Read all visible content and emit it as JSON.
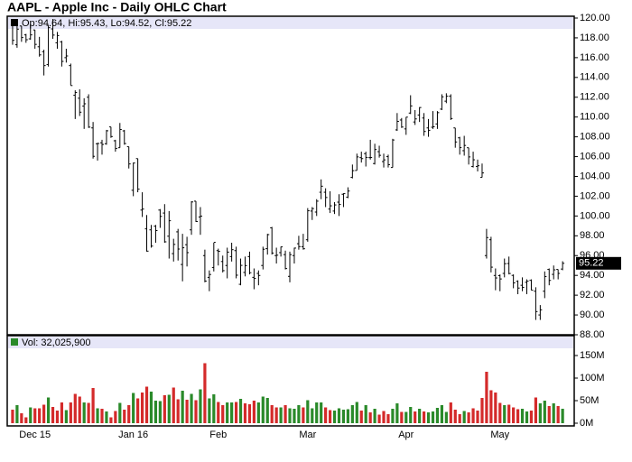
{
  "chart_data": [
    {
      "type": "ohlc",
      "title": "AAPL - Apple Inc - Daily OHLC Chart",
      "legend": "Op:94.64, Hi:95.43, Lo:94.52, Cl:95.22",
      "color": "#000000",
      "open": [
        119.3,
        117.3,
        119.2,
        118.3,
        117.9,
        118.8,
        117.1,
        116.6,
        115.3,
        118.9,
        117.5,
        117.6,
        116.0,
        115.2,
        112.2,
        111.9,
        111.1,
        112.0,
        108.9,
        107.3,
        107.4,
        107.3,
        109.0,
        107.6,
        106.9,
        108.6,
        107.0,
        102.6,
        105.8,
        100.6,
        98.7,
        98.6,
        98.97,
        100.6,
        100.3,
        97.96,
        96.2,
        98.4,
        95.1,
        97.1,
        98.6,
        101.5,
        99.9,
        96.0,
        93.8,
        94.8,
        96.5,
        95.4,
        95.0,
        95.9,
        96.5,
        93.1,
        94.3,
        95.9,
        93.8,
        94.2,
        95.0,
        96.7,
        98.8,
        96.0,
        96.3,
        96.1,
        93.9,
        96.0,
        97.2,
        96.9,
        97.6,
        100.5,
        100.4,
        102.4,
        102.4,
        100.7,
        100.5,
        101.4,
        102.2,
        101.9,
        103.9,
        104.6,
        105.9,
        106.3,
        105.9,
        105.3,
        106.5,
        105.5,
        106.0,
        104.9,
        108.7,
        109.7,
        108.8,
        110.4,
        109.5,
        110.2,
        109.9,
        108.9,
        108.97,
        109.3,
        110.8,
        111.6,
        112.1,
        108.9,
        107.9,
        106.6,
        106.9,
        105.0,
        105.0,
        103.9,
        96.0,
        97.6,
        93.99,
        93.97,
        94.2,
        95.2,
        94.0,
        93.4,
        93.0,
        93.3,
        93.5,
        92.4,
        90.0,
        92.4,
        94.6,
        94.1,
        94.6,
        94.64
      ],
      "high": [
        119.7,
        119.9,
        119.2,
        118.4,
        119.4,
        118.8,
        118.1,
        116.8,
        119.3,
        119.9,
        118.6,
        117.7,
        116.9,
        115.4,
        112.7,
        112.8,
        111.9,
        112.3,
        109.5,
        107.4,
        107.7,
        108.7,
        109.0,
        107.7,
        109.4,
        108.7,
        107.0,
        105.4,
        105.8,
        102.4,
        100.1,
        99.1,
        99.1,
        100.7,
        101.2,
        100.5,
        97.7,
        98.7,
        98.2,
        97.9,
        101.5,
        101.5,
        100.9,
        96.6,
        94.5,
        97.3,
        96.7,
        96.0,
        96.8,
        97.3,
        96.9,
        95.7,
        95.9,
        96.4,
        94.7,
        94.5,
        96.9,
        98.2,
        98.9,
        96.8,
        96.9,
        96.5,
        96.4,
        96.8,
        98.0,
        98.2,
        100.8,
        100.9,
        101.7,
        103.7,
        102.8,
        102.5,
        101.4,
        102.2,
        102.3,
        102.9,
        105.2,
        106.3,
        106.5,
        106.5,
        107.7,
        107.3,
        107.1,
        106.3,
        106.2,
        107.8,
        110.4,
        109.9,
        110.0,
        112.2,
        110.7,
        111.0,
        110.4,
        109.8,
        110.6,
        110.6,
        112.3,
        112.4,
        112.3,
        108.9,
        108.0,
        108.1,
        106.9,
        106.5,
        105.7,
        105.3,
        98.7,
        97.9,
        94.7,
        94.1,
        95.7,
        95.9,
        94.1,
        93.5,
        93.8,
        93.6,
        93.6,
        92.8,
        91.0,
        94.4,
        94.7,
        95.0,
        94.6,
        95.43
      ],
      "low": [
        117.3,
        117.0,
        117.6,
        117.5,
        117.8,
        116.9,
        116.1,
        114.2,
        115.1,
        117.9,
        116.9,
        115.1,
        115.5,
        113.2,
        109.8,
        110.1,
        108.8,
        108.9,
        105.8,
        105.6,
        106.2,
        107.2,
        107.9,
        106.5,
        106.9,
        107.2,
        104.8,
        102.0,
        102.4,
        99.9,
        96.4,
        96.8,
        97.3,
        98.8,
        97.3,
        95.7,
        95.4,
        95.5,
        93.4,
        94.9,
        98.1,
        99.4,
        98.1,
        93.3,
        92.4,
        94.4,
        95.0,
        94.3,
        93.7,
        95.4,
        93.7,
        93.0,
        93.9,
        94.1,
        92.6,
        93.0,
        94.6,
        96.1,
        96.1,
        95.2,
        95.9,
        94.6,
        93.3,
        95.2,
        96.6,
        96.6,
        97.4,
        99.6,
        100.0,
        101.7,
        100.9,
        100.3,
        100.2,
        100.0,
        100.9,
        101.8,
        103.8,
        104.6,
        105.4,
        105.0,
        105.7,
        105.2,
        105.9,
        104.9,
        104.9,
        104.9,
        108.6,
        108.9,
        108.2,
        110.3,
        109.2,
        109.5,
        108.1,
        108.0,
        108.8,
        108.8,
        110.7,
        111.4,
        109.7,
        106.9,
        106.2,
        106.1,
        105.2,
        104.9,
        104.5,
        103.9,
        95.7,
        94.3,
        92.5,
        92.4,
        93.8,
        94.1,
        92.7,
        92.1,
        92.4,
        92.1,
        92.5,
        89.5,
        89.5,
        91.7,
        93.0,
        93.6,
        93.6,
        94.52
      ],
      "close": [
        117.75,
        118.88,
        118.03,
        117.81,
        118.3,
        117.34,
        116.28,
        115.2,
        119.03,
        118.28,
        118.23,
        115.62,
        116.17,
        113.18,
        112.48,
        110.49,
        111.34,
        108.98,
        106.03,
        107.33,
        107.23,
        108.61,
        108.03,
        106.82,
        108.74,
        107.32,
        105.26,
        105.35,
        102.71,
        100.7,
        96.45,
        96.96,
        98.53,
        99.96,
        97.39,
        99.52,
        97.13,
        96.66,
        96.79,
        96.3,
        101.42,
        99.44,
        99.99,
        93.42,
        94.09,
        97.34,
        96.43,
        94.48,
        96.35,
        96.6,
        94.02,
        95.01,
        94.99,
        94.27,
        93.7,
        93.99,
        96.64,
        98.12,
        96.26,
        96.04,
        96.88,
        94.69,
        96.1,
        96.76,
        96.91,
        96.69,
        100.53,
        100.75,
        101.5,
        103.01,
        101.87,
        101.03,
        101.12,
        101.17,
        102.26,
        102.52,
        104.58,
        105.97,
        105.8,
        105.92,
        105.91,
        106.72,
        106.13,
        105.67,
        105.19,
        107.68,
        109.56,
        108.99,
        109.99,
        111.12,
        109.81,
        110.96,
        108.54,
        108.66,
        109.02,
        110.44,
        112.04,
        112.1,
        109.85,
        107.48,
        106.91,
        107.13,
        105.97,
        105.68,
        105.08,
        104.35,
        97.82,
        94.83,
        93.74,
        93.64,
        95.18,
        94.19,
        93.24,
        92.72,
        92.79,
        93.42,
        92.51,
        90.34,
        90.52,
        93.88,
        93.49,
        94.56,
        94.2,
        95.22
      ],
      "xlim": [
        -1.2,
        125.6
      ],
      "ylim": [
        88,
        120
      ],
      "yticks": [
        {
          "value": 88,
          "label": "88.00"
        },
        {
          "value": 90,
          "label": "90.00"
        },
        {
          "value": 92,
          "label": "92.00"
        },
        {
          "value": 94,
          "label": "94.00"
        },
        {
          "value": 96,
          "label": "96.00"
        },
        {
          "value": 98,
          "label": "98.00"
        },
        {
          "value": 100,
          "label": "100.00"
        },
        {
          "value": 102,
          "label": "102.00"
        },
        {
          "value": 104,
          "label": "104.00"
        },
        {
          "value": 106,
          "label": "106.00"
        },
        {
          "value": 108,
          "label": "108.00"
        },
        {
          "value": 110,
          "label": "110.00"
        },
        {
          "value": 112,
          "label": "112.00"
        },
        {
          "value": 114,
          "label": "114.00"
        },
        {
          "value": 116,
          "label": "116.00"
        },
        {
          "value": 118,
          "label": "118.00"
        },
        {
          "value": 120,
          "label": "120.00"
        }
      ]
    },
    {
      "type": "bar",
      "legend": "Vol: 32,025,900",
      "up_color": "#2a8a2a",
      "down_color": "#d42a2a",
      "values": [
        30,
        40,
        22,
        13,
        35,
        33,
        33,
        41,
        57,
        36,
        28,
        46,
        29,
        46,
        65,
        59,
        46,
        45,
        78,
        33,
        32,
        26,
        13,
        27,
        45,
        30,
        40,
        67,
        55,
        68,
        81,
        70,
        50,
        49,
        62,
        63,
        79,
        53,
        72,
        52,
        65,
        51,
        75,
        133,
        55,
        64,
        47,
        40,
        46,
        46,
        47,
        54,
        44,
        42,
        50,
        46,
        59,
        56,
        40,
        35,
        35,
        40,
        33,
        32,
        40,
        35,
        51,
        33,
        46,
        46,
        35,
        29,
        28,
        33,
        30,
        31,
        40,
        47,
        28,
        40,
        24,
        32,
        19,
        27,
        20,
        32,
        44,
        25,
        25,
        36,
        26,
        32,
        26,
        24,
        26,
        34,
        40,
        25,
        46,
        30,
        20,
        27,
        24,
        33,
        28,
        56,
        114,
        73,
        68,
        45,
        40,
        41,
        35,
        31,
        32,
        26,
        28,
        57,
        44,
        50,
        38,
        44,
        38,
        32.0259
      ],
      "xlim": [
        -1.2,
        125.6
      ],
      "ylim": [
        0,
        160
      ],
      "xticks": [
        {
          "value": 5,
          "label": "Dec 15"
        },
        {
          "value": 27,
          "label": "Jan 16"
        },
        {
          "value": 46,
          "label": "Feb"
        },
        {
          "value": 66,
          "label": "Mar"
        },
        {
          "value": 88,
          "label": "Apr"
        },
        {
          "value": 109,
          "label": "May"
        }
      ],
      "yticks": [
        {
          "value": 0,
          "label": "0M"
        },
        {
          "value": 50,
          "label": "50M"
        },
        {
          "value": 100,
          "label": "100M"
        },
        {
          "value": 150,
          "label": "150M"
        }
      ]
    }
  ]
}
